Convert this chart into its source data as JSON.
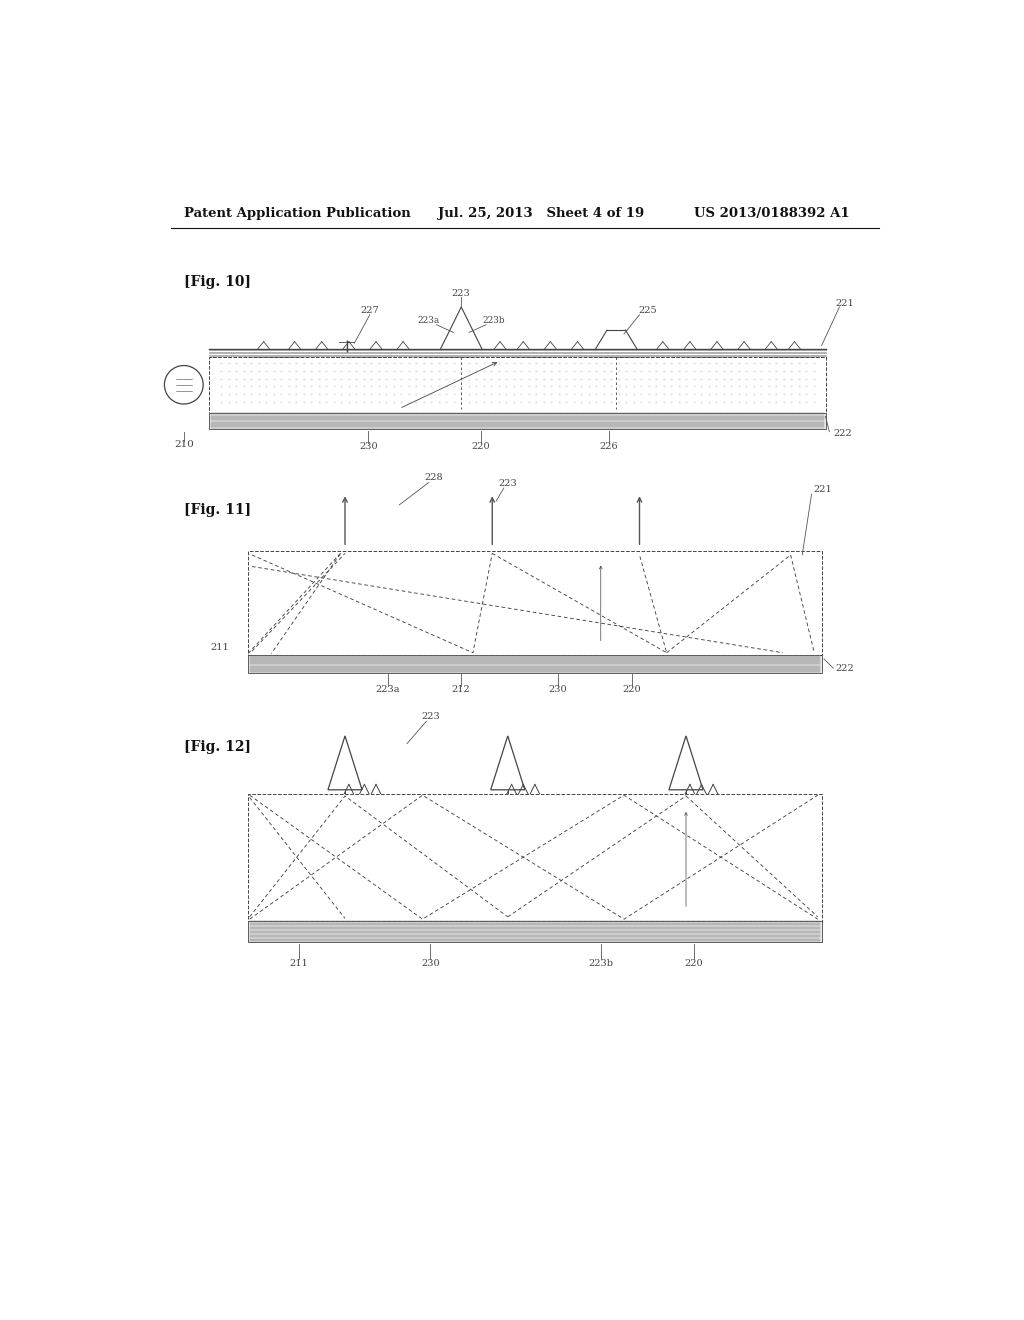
{
  "header_left": "Patent Application Publication",
  "header_mid": "Jul. 25, 2013   Sheet 4 of 19",
  "header_right": "US 2013/0188392 A1",
  "bg": "#ffffff",
  "fig10_label": "[Fig. 10]",
  "fig11_label": "[Fig. 11]",
  "fig12_label": "[Fig. 12]"
}
